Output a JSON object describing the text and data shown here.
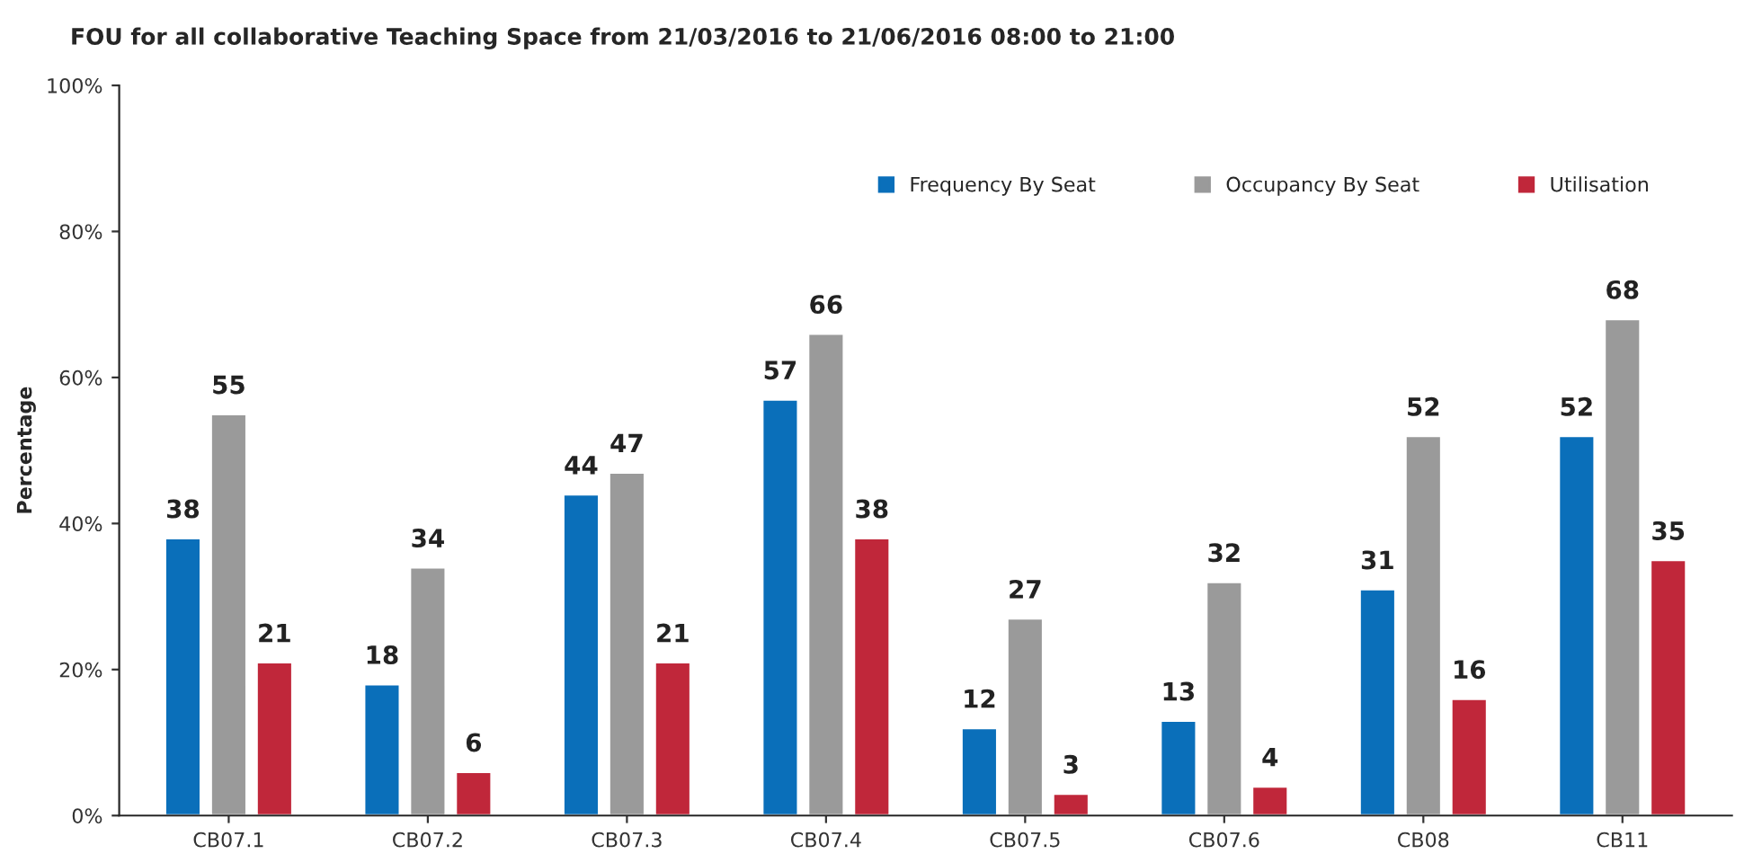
{
  "chart_data": {
    "type": "bar",
    "title": "FOU for all collaborative Teaching Space from 21/03/2016 to 21/06/2016 08:00 to 21:00",
    "ylabel": "Percentage",
    "categories": [
      "CB07.1",
      "CB07.2",
      "CB07.3",
      "CB07.4",
      "CB07.5",
      "CB07.6",
      "CB08",
      "CB11"
    ],
    "series": [
      {
        "name": "Frequency By Seat",
        "color": "#0a6fba",
        "values": [
          38,
          18,
          44,
          57,
          12,
          13,
          31,
          52
        ]
      },
      {
        "name": "Occupancy By Seat",
        "color": "#9a9a9a",
        "values": [
          55,
          34,
          47,
          66,
          27,
          32,
          52,
          68
        ]
      },
      {
        "name": "Utilisation",
        "color": "#c0273a",
        "values": [
          21,
          6,
          21,
          38,
          3,
          4,
          16,
          35
        ]
      }
    ],
    "ylim": [
      0,
      100
    ],
    "yticks": [
      {
        "value": 0,
        "label": "0%"
      },
      {
        "value": 20,
        "label": "20%"
      },
      {
        "value": 40,
        "label": "40%"
      },
      {
        "value": 60,
        "label": "60%"
      },
      {
        "value": 80,
        "label": "80%"
      },
      {
        "value": 100,
        "label": "100%"
      }
    ],
    "data_labels": true,
    "legend": "top right",
    "grid": false
  }
}
